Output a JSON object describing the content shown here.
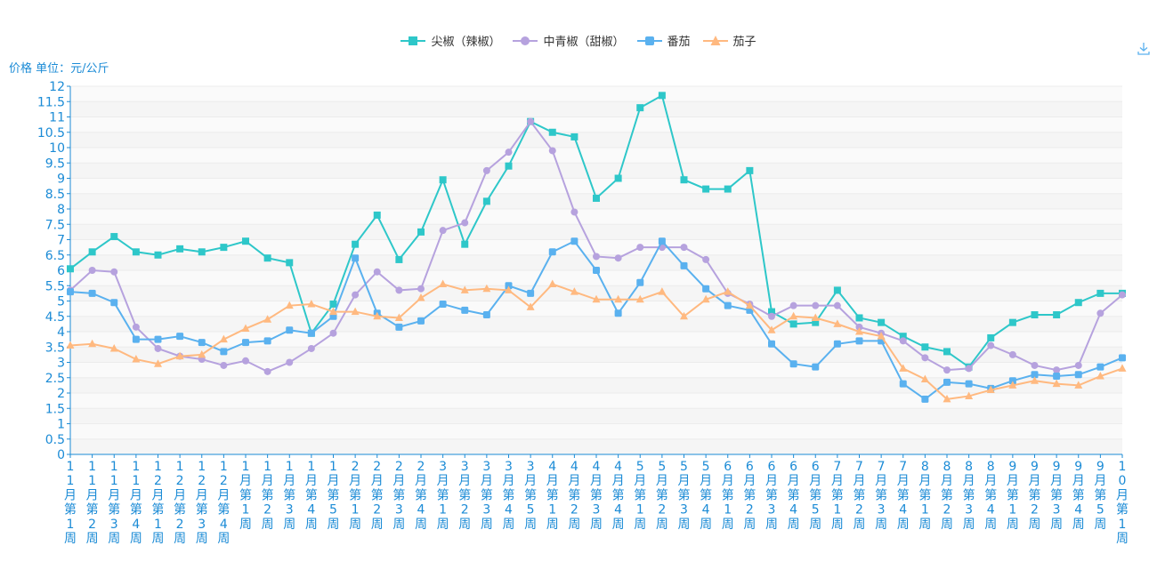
{
  "chart_data": {
    "type": "line",
    "ylabel": "价格 单位：元/公斤",
    "ylim": [
      0,
      12
    ],
    "yticks": [
      0,
      0.5,
      1,
      1.5,
      2,
      2.5,
      3,
      3.5,
      4,
      4.5,
      5,
      5.5,
      6,
      6.5,
      7,
      7.5,
      8,
      8.5,
      9,
      9.5,
      10,
      10.5,
      11,
      11.5,
      12
    ],
    "categories": [
      "11月第1周",
      "11月第2周",
      "11月第3周",
      "11月第4周",
      "12月第1周",
      "12月第2周",
      "12月第3周",
      "12月第4周",
      "1月第1周",
      "1月第2周",
      "1月第3周",
      "1月第4周",
      "1月第5周",
      "2月第1周",
      "2月第2周",
      "2月第3周",
      "2月第4周",
      "3月第1周",
      "3月第2周",
      "3月第3周",
      "3月第4周",
      "3月第5周",
      "4月第1周",
      "4月第2周",
      "4月第3周",
      "4月第4周",
      "5月第1周",
      "5月第2周",
      "5月第3周",
      "5月第4周",
      "6月第1周",
      "6月第2周",
      "6月第3周",
      "6月第4周",
      "6月第5周",
      "7月第1周",
      "7月第2周",
      "7月第3周",
      "7月第4周",
      "8月第1周",
      "8月第2周",
      "8月第3周",
      "8月第4周",
      "9月第1周",
      "9月第2周",
      "9月第3周",
      "9月第4周",
      "9月第5周",
      "10月第1周"
    ],
    "series": [
      {
        "name": "尖椒（辣椒）",
        "color": "#2ec7c9",
        "marker": "square",
        "values": [
          6.05,
          6.6,
          7.1,
          6.6,
          6.5,
          6.7,
          6.6,
          6.75,
          6.95,
          6.4,
          6.25,
          3.95,
          4.9,
          6.85,
          7.8,
          6.35,
          7.25,
          8.95,
          6.85,
          8.25,
          9.4,
          10.85,
          10.5,
          10.35,
          8.35,
          9.0,
          11.3,
          11.7,
          8.95,
          8.65,
          8.65,
          9.25,
          4.65,
          4.25,
          4.3,
          5.35,
          4.45,
          4.3,
          3.85,
          3.5,
          3.35,
          2.85,
          3.8,
          4.3,
          4.55,
          4.55,
          4.95,
          5.25,
          5.25
        ]
      },
      {
        "name": "中青椒（甜椒）",
        "color": "#b6a2de",
        "marker": "circle",
        "values": [
          5.35,
          6.0,
          5.95,
          4.15,
          3.45,
          3.2,
          3.1,
          2.9,
          3.05,
          2.7,
          3.0,
          3.45,
          3.95,
          5.2,
          5.95,
          5.35,
          5.4,
          7.3,
          7.55,
          9.25,
          9.85,
          10.85,
          9.9,
          7.9,
          6.45,
          6.4,
          6.75,
          6.75,
          6.75,
          6.35,
          5.25,
          4.9,
          4.5,
          4.85,
          4.85,
          4.85,
          4.15,
          3.95,
          3.7,
          3.15,
          2.75,
          2.8,
          3.55,
          3.25,
          2.9,
          2.75,
          2.9,
          4.6,
          5.2
        ]
      },
      {
        "name": "番茄",
        "color": "#5ab1ef",
        "marker": "roundrect",
        "values": [
          5.3,
          5.25,
          4.95,
          3.75,
          3.75,
          3.85,
          3.65,
          3.35,
          3.65,
          3.7,
          4.05,
          3.95,
          4.5,
          6.4,
          4.6,
          4.15,
          4.35,
          4.9,
          4.7,
          4.55,
          5.5,
          5.25,
          6.6,
          6.95,
          6.0,
          4.6,
          5.6,
          6.95,
          6.15,
          5.4,
          4.85,
          4.7,
          3.6,
          2.95,
          2.85,
          3.6,
          3.7,
          3.7,
          2.3,
          1.8,
          2.35,
          2.3,
          2.15,
          2.4,
          2.6,
          2.55,
          2.6,
          2.85,
          3.15
        ]
      },
      {
        "name": "茄子",
        "color": "#ffb980",
        "marker": "triangle",
        "values": [
          3.55,
          3.6,
          3.45,
          3.1,
          2.95,
          3.2,
          3.25,
          3.75,
          4.1,
          4.4,
          4.85,
          4.9,
          4.65,
          4.65,
          4.5,
          4.45,
          5.1,
          5.55,
          5.35,
          5.4,
          5.35,
          4.8,
          5.55,
          5.3,
          5.05,
          5.05,
          5.05,
          5.3,
          4.5,
          5.05,
          5.3,
          4.85,
          4.05,
          4.5,
          4.45,
          4.25,
          4.0,
          3.85,
          2.8,
          2.45,
          1.8,
          1.9,
          2.1,
          2.25,
          2.4,
          2.3,
          2.25,
          2.55,
          2.8
        ]
      }
    ]
  }
}
